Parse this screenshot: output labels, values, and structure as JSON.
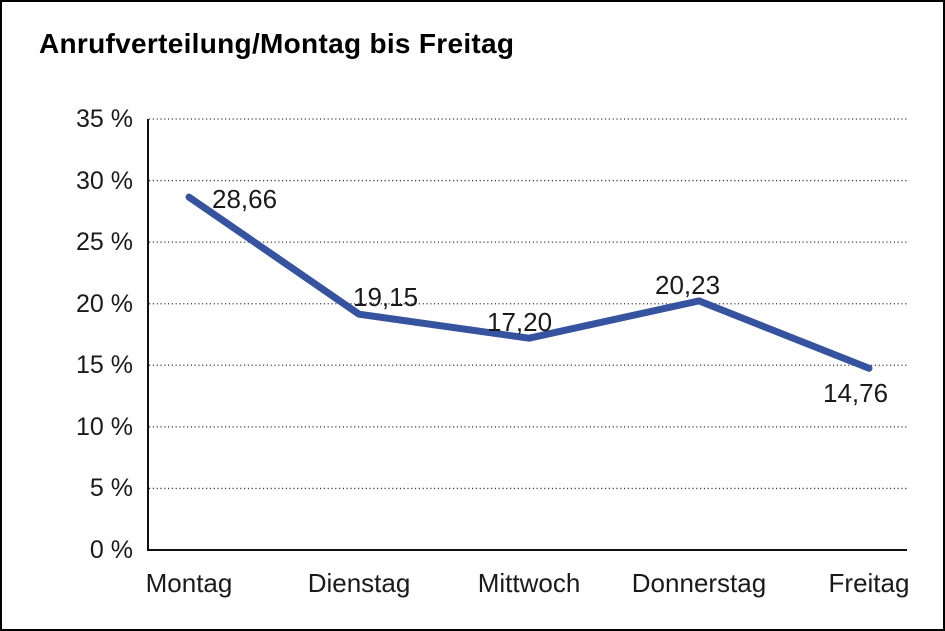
{
  "title": "Anrufverteilung/Montag bis Freitag",
  "chart_data": {
    "type": "line",
    "title": "Anrufverteilung/Montag bis Freitag",
    "categories": [
      "Montag",
      "Dienstag",
      "Mittwoch",
      "Donnerstag",
      "Freitag"
    ],
    "values": [
      28.66,
      19.15,
      17.2,
      20.23,
      14.76
    ],
    "point_labels": [
      "28,66",
      "19,15",
      "17,20",
      "20,23",
      "14,76"
    ],
    "y_tick_labels": [
      "35 %",
      "30 %",
      "25 %",
      "20 %",
      "15 %",
      "10 %",
      "5 %",
      "0 %"
    ],
    "ylim": [
      0,
      35
    ],
    "y_step": 5,
    "unit": "%",
    "grid": "horizontal-dotted",
    "legend": "none",
    "line_color": "#36539F",
    "axis_color": "#111111",
    "grid_color": "#3d3d3d",
    "text_color": "#1a1a1a",
    "background": "#ffffff",
    "border_color": "#000000"
  }
}
